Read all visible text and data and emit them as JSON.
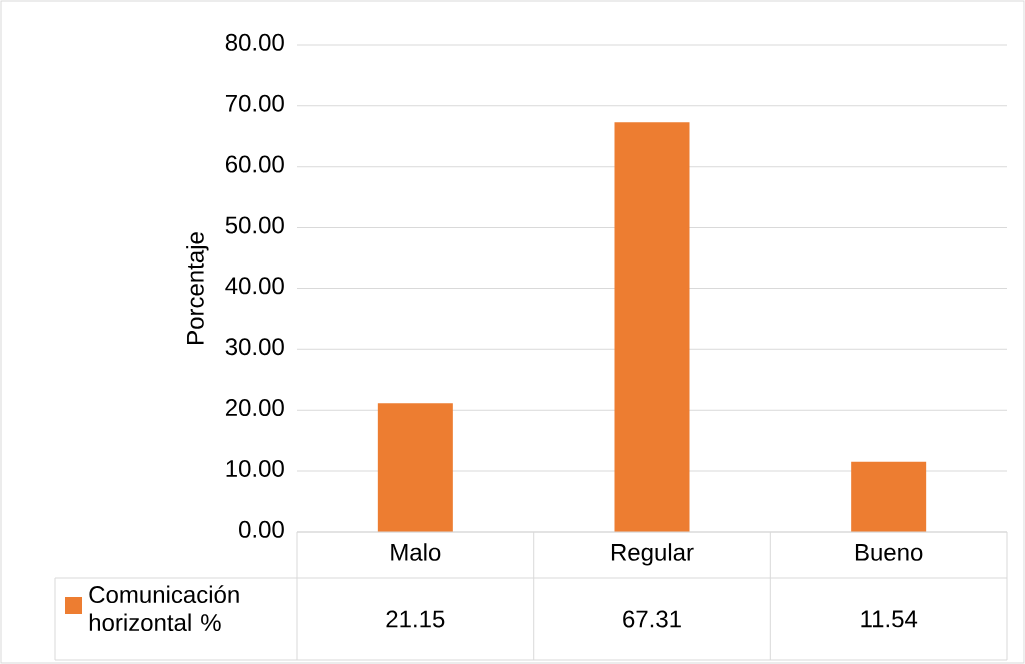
{
  "chart_data": {
    "type": "bar",
    "ylabel": "Porcentaje",
    "categories": [
      "Malo",
      "Regular",
      "Bueno"
    ],
    "series": [
      {
        "name": "Comunicación horizontal %",
        "color": "#ed7d31",
        "values": [
          21.15,
          67.31,
          11.54
        ]
      }
    ],
    "ylim": [
      0,
      80
    ],
    "yticks": [
      {
        "value": 0,
        "label": "0.00"
      },
      {
        "value": 10,
        "label": "10.00"
      },
      {
        "value": 20,
        "label": "20.00"
      },
      {
        "value": 30,
        "label": "30.00"
      },
      {
        "value": 40,
        "label": "40.00"
      },
      {
        "value": 50,
        "label": "50.00"
      },
      {
        "value": 60,
        "label": "60.00"
      },
      {
        "value": 70,
        "label": "70.00"
      },
      {
        "value": 80,
        "label": "80.00"
      }
    ],
    "grid": "y",
    "data_labels": true,
    "legend": "bottom left"
  }
}
